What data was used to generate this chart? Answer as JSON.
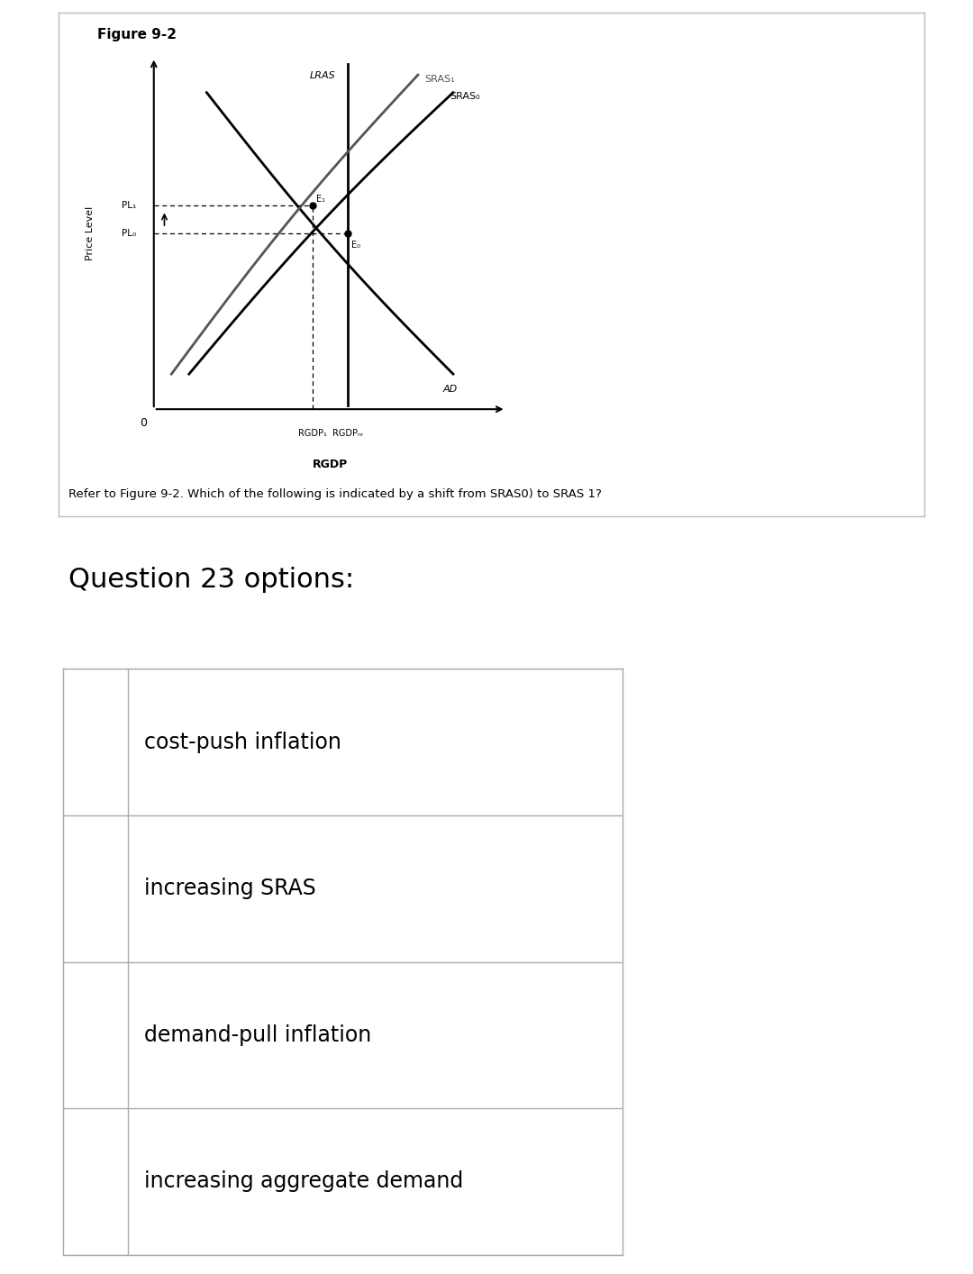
{
  "figure_title": "Figure 9-2",
  "background_color": "#ffffff",
  "question_text": "Refer to Figure 9-2. Which of the following is indicated by a shift from SRAS0) to SRAS 1?",
  "question_header": "Question 23 options:",
  "options": [
    "cost-push inflation",
    "increasing SRAS",
    "demand-pull inflation",
    "increasing aggregate demand"
  ],
  "chart": {
    "xlim": [
      0,
      10
    ],
    "ylim": [
      0,
      10
    ],
    "xlabel": "RGDP",
    "ylabel": "Price Level",
    "lras_x": 5.5,
    "ad_x1": 1.5,
    "ad_y1": 9.0,
    "ad_x2": 8.5,
    "ad_y2": 1.0,
    "sras0_x1": 1.0,
    "sras0_y1": 1.0,
    "sras0_x2": 8.5,
    "sras0_y2": 9.0,
    "sras1_x1": 0.5,
    "sras1_y1": 1.0,
    "sras1_x2": 7.5,
    "sras1_y2": 9.5,
    "e0_x": 5.5,
    "e0_y": 5.0,
    "e1_x": 4.5,
    "e1_y": 5.8,
    "pl0": 5.0,
    "pl1": 5.8,
    "rgdp1": 4.5,
    "rgdp_nr": 5.5,
    "lras_label": "LRAS",
    "ad_label": "AD",
    "sras0_label": "SRAS₀",
    "sras1_label": "SRAS₁",
    "pl0_label": "PL₀",
    "pl1_label": "PL₁",
    "e0_label": "E₀",
    "e1_label": "E₁",
    "rgdp1_label": "RGDP₁",
    "rgdp_nr_label": "RGDPₙᵣ"
  }
}
